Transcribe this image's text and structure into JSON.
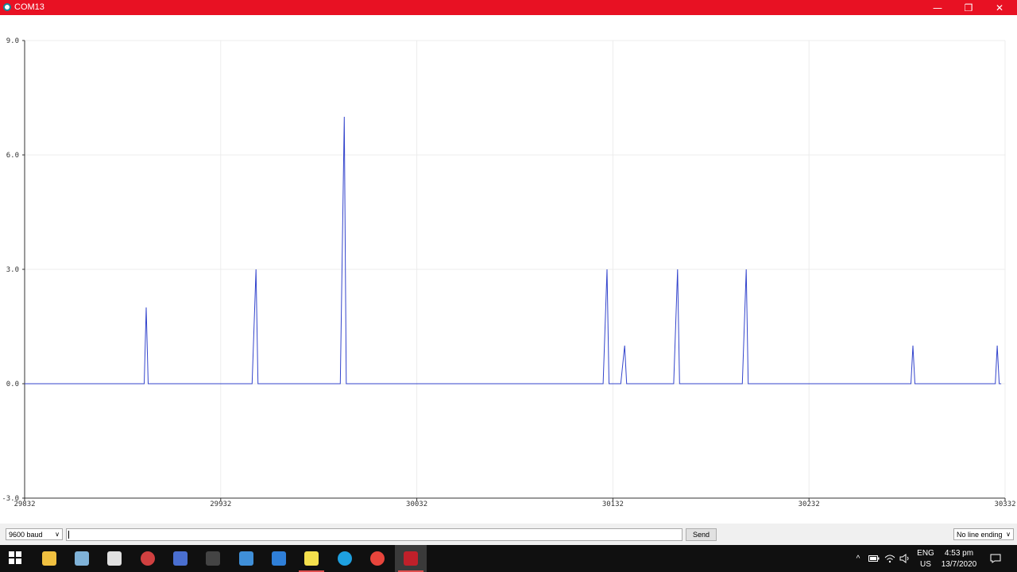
{
  "window": {
    "title": "COM13",
    "minimize_glyph": "—",
    "restore_glyph": "❐",
    "close_glyph": "✕"
  },
  "chart_data": {
    "type": "line",
    "x_ticks": [
      "29832",
      "29932",
      "30032",
      "30132",
      "30232",
      "30332"
    ],
    "y_ticks": [
      "-3.0",
      "0.0",
      "3.0",
      "6.0",
      "9.0"
    ],
    "x_range": [
      29832,
      30332
    ],
    "y_range": [
      -3,
      9
    ],
    "grid": true,
    "series": [
      {
        "color": "#3344cc",
        "points": [
          [
            29832,
            0
          ],
          [
            29893,
            0
          ],
          [
            29894,
            2
          ],
          [
            29895,
            0
          ],
          [
            29948,
            0
          ],
          [
            29950,
            3
          ],
          [
            29951,
            0
          ],
          [
            29993,
            0
          ],
          [
            29995,
            7
          ],
          [
            29996,
            0
          ],
          [
            30127,
            0
          ],
          [
            30129,
            3
          ],
          [
            30130,
            0
          ],
          [
            30136,
            0
          ],
          [
            30138,
            1
          ],
          [
            30139,
            0
          ],
          [
            30163,
            0
          ],
          [
            30165,
            3
          ],
          [
            30166,
            0
          ],
          [
            30198,
            0
          ],
          [
            30200,
            3
          ],
          [
            30201,
            0
          ],
          [
            30284,
            0
          ],
          [
            30285,
            1
          ],
          [
            30286,
            0
          ],
          [
            30327,
            0
          ],
          [
            30328,
            1
          ],
          [
            30329,
            0
          ],
          [
            30330,
            0
          ]
        ]
      }
    ]
  },
  "bottom": {
    "baud": "9600 baud",
    "send": "Send",
    "line_ending": "No line ending"
  },
  "taskbar": {
    "items": [
      {
        "name": "start-icon",
        "color": "#ffffff"
      },
      {
        "name": "file-explorer-icon",
        "color": "#f0c040"
      },
      {
        "name": "notepad-icon",
        "color": "#7fb2d8"
      },
      {
        "name": "remote-desktop-icon",
        "color": "#e0e0e0"
      },
      {
        "name": "media-player-icon",
        "color": "#d04040"
      },
      {
        "name": "app-icon",
        "color": "#4a6fd0"
      },
      {
        "name": "terminal-icon",
        "color": "#444444"
      },
      {
        "name": "search-tool-icon",
        "color": "#3f8fd8"
      },
      {
        "name": "typora-icon",
        "color": "#2f7fd8"
      },
      {
        "name": "sticky-notes-icon",
        "color": "#f4e04d"
      },
      {
        "name": "skype-icon",
        "color": "#1ea0e0"
      },
      {
        "name": "chrome-icon",
        "color": "#e8453c"
      },
      {
        "name": "arduino-icon",
        "color": "#c0202a"
      }
    ],
    "language_top": "ENG",
    "language_bottom": "US",
    "time": "4:53 pm",
    "date": "13/7/2020"
  }
}
